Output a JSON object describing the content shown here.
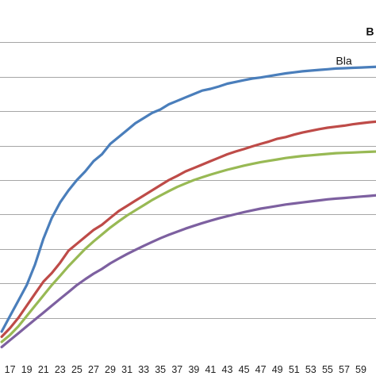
{
  "chart_data": {
    "type": "line",
    "title": "",
    "xlabel": "",
    "ylabel": "",
    "x_ticks": [
      17,
      19,
      21,
      23,
      25,
      27,
      29,
      31,
      33,
      35,
      37,
      39,
      41,
      43,
      45,
      47,
      49,
      51,
      53,
      55,
      57,
      59
    ],
    "x_range": [
      15.8,
      60.8
    ],
    "y_range": [
      0,
      10
    ],
    "y_gridlines": [
      1,
      2,
      3,
      4,
      5,
      6,
      7,
      8,
      9
    ],
    "grid": true,
    "annotations": [
      {
        "text": "B",
        "x": 59.6,
        "y": 9.2,
        "bold": true
      },
      {
        "text": "Bla",
        "x": 56.0,
        "y": 8.35,
        "bold": false
      }
    ],
    "series": [
      {
        "color": "#4a7ebb",
        "x": [
          16,
          17,
          18,
          19,
          20,
          21,
          22,
          23,
          24,
          25,
          26,
          27,
          28,
          29,
          30,
          31,
          32,
          33,
          34,
          35,
          36,
          37,
          38,
          39,
          40,
          41,
          42,
          43,
          44,
          45,
          46,
          47,
          48,
          49,
          50,
          51,
          52,
          53,
          54,
          55,
          56,
          57,
          58,
          59,
          60,
          61
        ],
        "values": [
          0.6,
          1.05,
          1.5,
          1.95,
          2.55,
          3.3,
          3.9,
          4.35,
          4.7,
          5.0,
          5.25,
          5.55,
          5.75,
          6.05,
          6.25,
          6.45,
          6.65,
          6.8,
          6.95,
          7.05,
          7.2,
          7.3,
          7.4,
          7.5,
          7.6,
          7.65,
          7.72,
          7.8,
          7.85,
          7.9,
          7.95,
          7.98,
          8.02,
          8.06,
          8.1,
          8.13,
          8.16,
          8.18,
          8.2,
          8.22,
          8.24,
          8.25,
          8.26,
          8.27,
          8.28,
          8.29
        ]
      },
      {
        "color": "#be4b48",
        "x": [
          16,
          17,
          18,
          19,
          20,
          21,
          22,
          23,
          24,
          25,
          26,
          27,
          28,
          29,
          30,
          31,
          32,
          33,
          34,
          35,
          36,
          37,
          38,
          39,
          40,
          41,
          42,
          43,
          44,
          45,
          46,
          47,
          48,
          49,
          50,
          51,
          52,
          53,
          54,
          55,
          56,
          57,
          58,
          59,
          60,
          61
        ],
        "values": [
          0.45,
          0.7,
          1.0,
          1.35,
          1.7,
          2.05,
          2.3,
          2.6,
          2.95,
          3.15,
          3.35,
          3.55,
          3.7,
          3.9,
          4.1,
          4.25,
          4.4,
          4.55,
          4.7,
          4.85,
          5.0,
          5.12,
          5.25,
          5.35,
          5.45,
          5.55,
          5.65,
          5.75,
          5.83,
          5.9,
          5.98,
          6.05,
          6.12,
          6.2,
          6.25,
          6.32,
          6.38,
          6.43,
          6.48,
          6.52,
          6.55,
          6.58,
          6.62,
          6.65,
          6.68,
          6.7
        ]
      },
      {
        "color": "#98b954",
        "x": [
          16,
          17,
          18,
          19,
          20,
          21,
          22,
          23,
          24,
          25,
          26,
          27,
          28,
          29,
          30,
          31,
          32,
          33,
          34,
          35,
          36,
          37,
          38,
          39,
          40,
          41,
          42,
          43,
          44,
          45,
          46,
          47,
          48,
          49,
          50,
          51,
          52,
          53,
          54,
          55,
          56,
          57,
          58,
          59,
          60,
          61
        ],
        "values": [
          0.3,
          0.5,
          0.75,
          1.05,
          1.35,
          1.65,
          1.95,
          2.22,
          2.5,
          2.75,
          3.0,
          3.22,
          3.42,
          3.62,
          3.8,
          3.97,
          4.12,
          4.27,
          4.42,
          4.55,
          4.68,
          4.8,
          4.9,
          5.0,
          5.08,
          5.16,
          5.23,
          5.3,
          5.36,
          5.42,
          5.47,
          5.52,
          5.56,
          5.6,
          5.64,
          5.67,
          5.7,
          5.72,
          5.74,
          5.76,
          5.78,
          5.79,
          5.8,
          5.81,
          5.82,
          5.83
        ]
      },
      {
        "color": "#7d60a0",
        "x": [
          16,
          17,
          18,
          19,
          20,
          21,
          22,
          23,
          24,
          25,
          26,
          27,
          28,
          29,
          30,
          31,
          32,
          33,
          34,
          35,
          36,
          37,
          38,
          39,
          40,
          41,
          42,
          43,
          44,
          45,
          46,
          47,
          48,
          49,
          50,
          51,
          52,
          53,
          54,
          55,
          56,
          57,
          58,
          59,
          60,
          61
        ],
        "values": [
          0.15,
          0.35,
          0.55,
          0.75,
          0.95,
          1.15,
          1.35,
          1.55,
          1.75,
          1.95,
          2.12,
          2.28,
          2.42,
          2.58,
          2.72,
          2.85,
          2.97,
          3.09,
          3.2,
          3.31,
          3.41,
          3.5,
          3.59,
          3.67,
          3.75,
          3.82,
          3.89,
          3.95,
          4.01,
          4.07,
          4.12,
          4.17,
          4.21,
          4.25,
          4.29,
          4.32,
          4.35,
          4.38,
          4.41,
          4.44,
          4.46,
          4.48,
          4.5,
          4.52,
          4.54,
          4.56
        ]
      }
    ]
  }
}
